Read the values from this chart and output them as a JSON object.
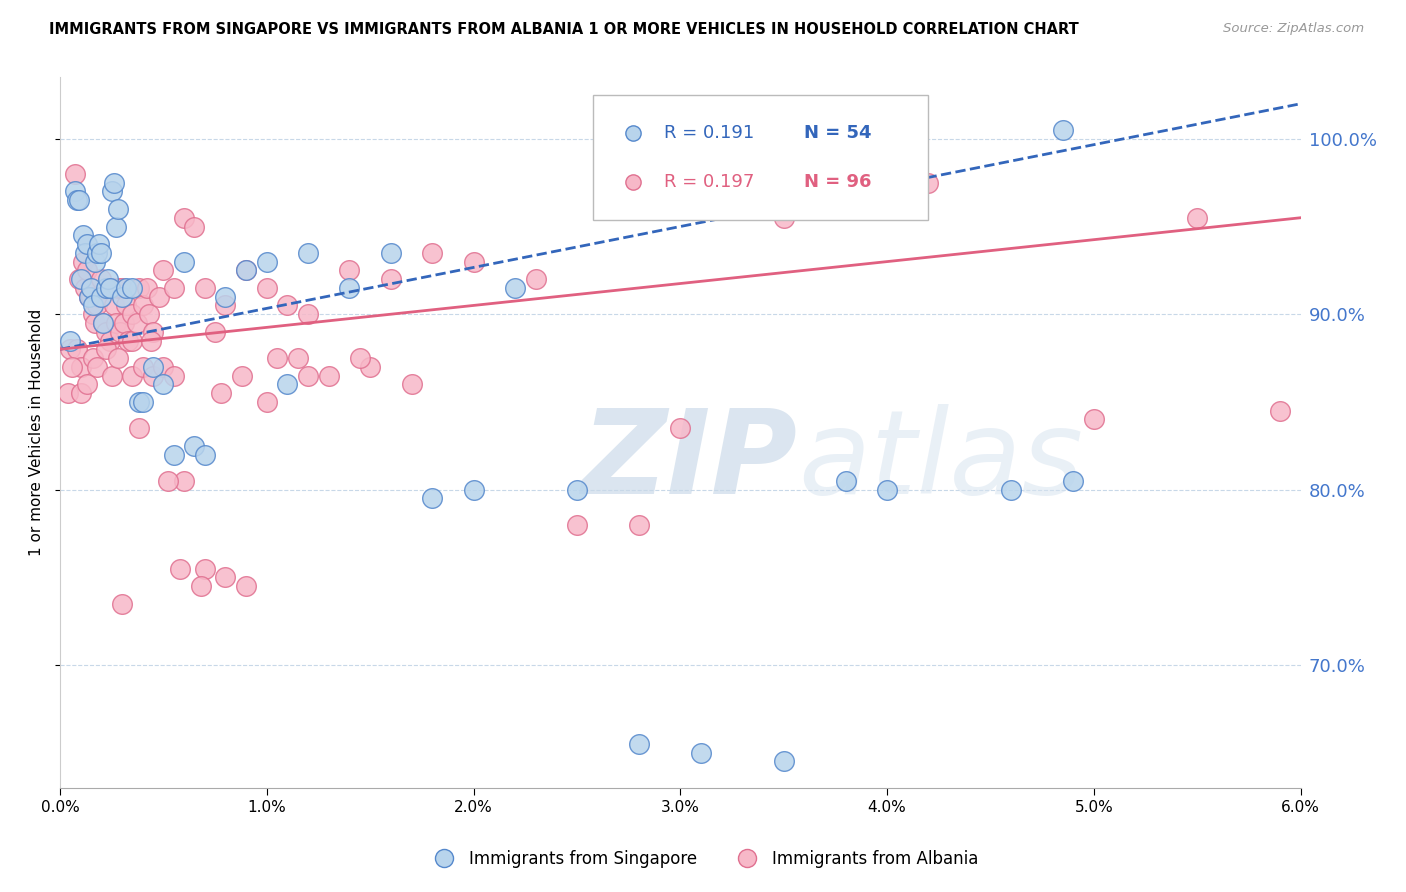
{
  "title": "IMMIGRANTS FROM SINGAPORE VS IMMIGRANTS FROM ALBANIA 1 OR MORE VEHICLES IN HOUSEHOLD CORRELATION CHART",
  "source": "Source: ZipAtlas.com",
  "ylabel": "1 or more Vehicles in Household",
  "xmin": 0.0,
  "xmax": 6.0,
  "ymin": 63.0,
  "ymax": 103.5,
  "yticks": [
    70.0,
    80.0,
    90.0,
    100.0
  ],
  "singapore_color": "#b8d4ec",
  "albania_color": "#f7b8c8",
  "singapore_edge": "#5588cc",
  "albania_edge": "#e07090",
  "trend_singapore_color": "#3366bb",
  "trend_albania_color": "#e06080",
  "legend_R_singapore": "0.191",
  "legend_N_singapore": "54",
  "legend_R_albania": "0.197",
  "legend_N_albania": "96",
  "watermark_zip": "ZIP",
  "watermark_atlas": "atlas",
  "sg_x": [
    0.05,
    0.07,
    0.08,
    0.09,
    0.1,
    0.11,
    0.12,
    0.13,
    0.14,
    0.15,
    0.16,
    0.17,
    0.18,
    0.19,
    0.2,
    0.2,
    0.21,
    0.22,
    0.23,
    0.24,
    0.25,
    0.26,
    0.27,
    0.28,
    0.3,
    0.32,
    0.35,
    0.38,
    0.4,
    0.45,
    0.5,
    0.55,
    0.6,
    0.65,
    0.7,
    0.8,
    0.9,
    1.0,
    1.1,
    1.2,
    1.4,
    1.6,
    1.8,
    2.0,
    2.2,
    2.5,
    2.8,
    3.1,
    3.5,
    3.8,
    4.0,
    4.6,
    4.85,
    4.9
  ],
  "sg_y": [
    88.5,
    97.0,
    96.5,
    96.5,
    92.0,
    94.5,
    93.5,
    94.0,
    91.0,
    91.5,
    90.5,
    93.0,
    93.5,
    94.0,
    91.0,
    93.5,
    89.5,
    91.5,
    92.0,
    91.5,
    97.0,
    97.5,
    95.0,
    96.0,
    91.0,
    91.5,
    91.5,
    85.0,
    85.0,
    87.0,
    86.0,
    82.0,
    93.0,
    82.5,
    82.0,
    91.0,
    92.5,
    93.0,
    86.0,
    93.5,
    91.5,
    93.5,
    79.5,
    80.0,
    91.5,
    80.0,
    65.5,
    65.0,
    64.5,
    80.5,
    80.0,
    80.0,
    100.5,
    80.5
  ],
  "al_x": [
    0.05,
    0.07,
    0.08,
    0.09,
    0.1,
    0.11,
    0.12,
    0.13,
    0.14,
    0.15,
    0.16,
    0.17,
    0.18,
    0.19,
    0.2,
    0.21,
    0.22,
    0.23,
    0.24,
    0.25,
    0.26,
    0.27,
    0.28,
    0.29,
    0.3,
    0.31,
    0.32,
    0.33,
    0.35,
    0.35,
    0.37,
    0.38,
    0.4,
    0.42,
    0.43,
    0.45,
    0.48,
    0.5,
    0.55,
    0.6,
    0.65,
    0.7,
    0.75,
    0.8,
    0.9,
    1.0,
    1.1,
    1.2,
    1.4,
    1.6,
    1.8,
    2.0,
    2.3,
    2.5,
    2.8,
    3.0,
    3.5,
    4.0,
    4.2,
    5.0,
    5.5,
    5.9,
    0.04,
    0.06,
    0.1,
    0.13,
    0.16,
    0.18,
    0.22,
    0.25,
    0.28,
    0.35,
    0.4,
    0.45,
    0.5,
    0.55,
    0.6,
    0.7,
    0.8,
    0.9,
    1.0,
    1.2,
    1.5,
    1.7,
    0.3,
    0.38,
    0.44,
    0.52,
    0.58,
    0.68,
    0.78,
    0.88,
    1.05,
    1.15,
    1.3,
    1.45
  ],
  "al_y": [
    88.0,
    98.0,
    88.0,
    92.0,
    87.0,
    93.0,
    91.5,
    92.5,
    91.0,
    91.0,
    90.0,
    89.5,
    90.5,
    91.0,
    92.0,
    89.5,
    89.0,
    91.5,
    88.5,
    91.5,
    90.5,
    89.5,
    91.5,
    89.0,
    91.5,
    89.5,
    90.5,
    88.5,
    90.0,
    88.5,
    89.5,
    91.5,
    90.5,
    91.5,
    90.0,
    89.0,
    91.0,
    92.5,
    91.5,
    95.5,
    95.0,
    91.5,
    89.0,
    90.5,
    92.5,
    91.5,
    90.5,
    90.0,
    92.5,
    92.0,
    93.5,
    93.0,
    92.0,
    78.0,
    78.0,
    83.5,
    95.5,
    96.5,
    97.5,
    84.0,
    95.5,
    84.5,
    85.5,
    87.0,
    85.5,
    86.0,
    87.5,
    87.0,
    88.0,
    86.5,
    87.5,
    86.5,
    87.0,
    86.5,
    87.0,
    86.5,
    80.5,
    75.5,
    75.0,
    74.5,
    85.0,
    86.5,
    87.0,
    86.0,
    73.5,
    83.5,
    88.5,
    80.5,
    75.5,
    74.5,
    85.5,
    86.5,
    87.5,
    87.5,
    86.5,
    87.5
  ]
}
